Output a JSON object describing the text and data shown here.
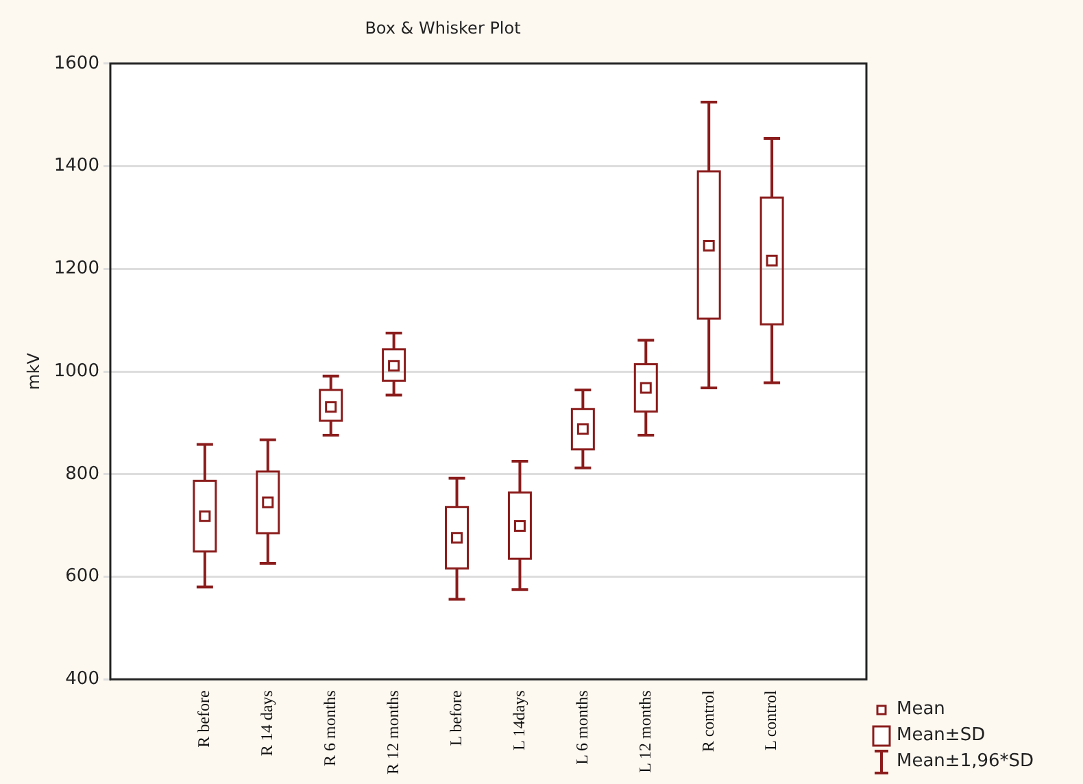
{
  "chart_data": {
    "type": "box",
    "title": "Box & Whisker Plot",
    "ylabel": "mkV",
    "categories": [
      null,
      "R before",
      "R 14 days",
      "R 6 months",
      "R 12 months",
      "L before",
      "L 14days",
      "L 6 months",
      "L 12 months",
      "R control",
      "L control",
      null
    ],
    "boxes": [
      null,
      {
        "low": 580,
        "q1": 649,
        "median": 718,
        "q3": 787,
        "high": 858
      },
      {
        "low": 626,
        "q1": 685,
        "median": 745,
        "q3": 805,
        "high": 867
      },
      {
        "low": 876,
        "q1": 904,
        "median": 931,
        "q3": 964,
        "high": 991
      },
      {
        "low": 954,
        "q1": 982,
        "median": 1011,
        "q3": 1043,
        "high": 1075
      },
      {
        "low": 556,
        "q1": 616,
        "median": 676,
        "q3": 736,
        "high": 792
      },
      {
        "low": 575,
        "q1": 635,
        "median": 699,
        "q3": 764,
        "high": 825
      },
      {
        "low": 812,
        "q1": 848,
        "median": 888,
        "q3": 927,
        "high": 964
      },
      {
        "low": 876,
        "q1": 922,
        "median": 968,
        "q3": 1014,
        "high": 1061
      },
      {
        "low": 968,
        "q1": 1103,
        "median": 1245,
        "q3": 1390,
        "high": 1525
      },
      {
        "low": 978,
        "q1": 1092,
        "median": 1216,
        "q3": 1339,
        "high": 1454
      },
      null
    ],
    "color": "#8b1c1c",
    "ylim": [
      400,
      1600
    ],
    "yticks": [
      400,
      600,
      800,
      1000,
      1200,
      1400,
      1600
    ],
    "grid": "y",
    "marker": "square",
    "annotations": [
      "Mean",
      "Mean±SD",
      "Mean±1,96*SD"
    ]
  }
}
